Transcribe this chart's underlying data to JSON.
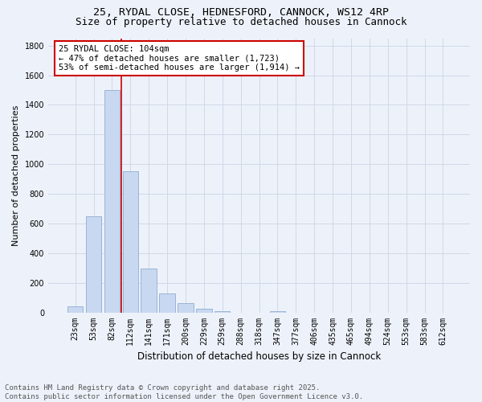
{
  "title_line1": "25, RYDAL CLOSE, HEDNESFORD, CANNOCK, WS12 4RP",
  "title_line2": "Size of property relative to detached houses in Cannock",
  "xlabel": "Distribution of detached houses by size in Cannock",
  "ylabel": "Number of detached properties",
  "categories": [
    "23sqm",
    "53sqm",
    "82sqm",
    "112sqm",
    "141sqm",
    "171sqm",
    "200sqm",
    "229sqm",
    "259sqm",
    "288sqm",
    "318sqm",
    "347sqm",
    "377sqm",
    "406sqm",
    "435sqm",
    "465sqm",
    "494sqm",
    "524sqm",
    "553sqm",
    "583sqm",
    "612sqm"
  ],
  "values": [
    40,
    650,
    1500,
    950,
    295,
    130,
    65,
    25,
    10,
    0,
    0,
    10,
    0,
    0,
    0,
    0,
    0,
    0,
    0,
    0,
    0
  ],
  "bar_color": "#c8d8f0",
  "bar_edge_color": "#9ab4d8",
  "grid_color": "#d0d8e8",
  "bg_color": "#edf2fa",
  "vline_x_index": 2.5,
  "vline_color": "#cc0000",
  "annotation_line1": "25 RYDAL CLOSE: 104sqm",
  "annotation_line2": "← 47% of detached houses are smaller (1,723)",
  "annotation_line3": "53% of semi-detached houses are larger (1,914) →",
  "annotation_box_edgecolor": "#cc0000",
  "annotation_bg": "#ffffff",
  "ylim": [
    0,
    1850
  ],
  "yticks": [
    0,
    200,
    400,
    600,
    800,
    1000,
    1200,
    1400,
    1600,
    1800
  ],
  "footer_line1": "Contains HM Land Registry data © Crown copyright and database right 2025.",
  "footer_line2": "Contains public sector information licensed under the Open Government Licence v3.0.",
  "title_fontsize": 9.5,
  "subtitle_fontsize": 9,
  "ylabel_fontsize": 8,
  "xlabel_fontsize": 8.5,
  "tick_fontsize": 7,
  "annotation_fontsize": 7.5,
  "footer_fontsize": 6.5
}
